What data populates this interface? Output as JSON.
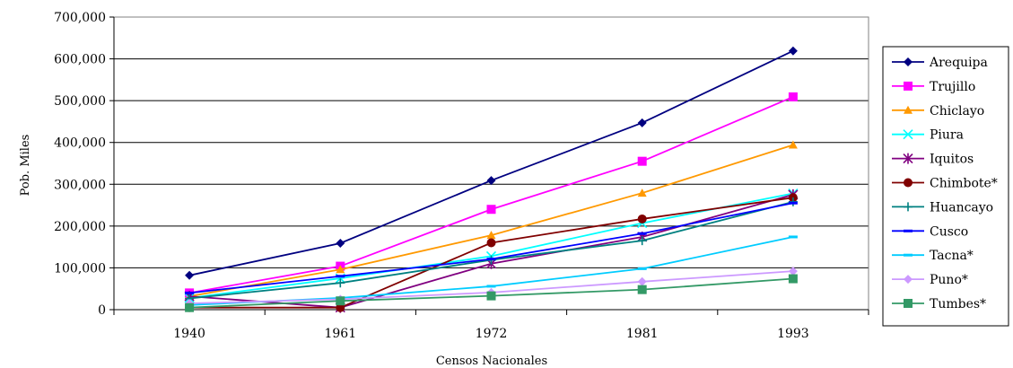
{
  "chart_data": {
    "type": "line",
    "title": "",
    "xlabel": "Censos Nacionales",
    "ylabel": "Pob. Miles",
    "categories": [
      "1940",
      "1961",
      "1972",
      "1981",
      "1993"
    ],
    "ylim": [
      0,
      700000
    ],
    "yticks": [
      "0",
      "100,000",
      "200,000",
      "300,000",
      "400,000",
      "500,000",
      "600,000",
      "700,000"
    ],
    "grid": "horizontal",
    "legend_position": "right",
    "series": [
      {
        "name": "Arequipa",
        "color": "#000080",
        "marker": "diamond",
        "values": [
          82000,
          159000,
          309000,
          447000,
          619000
        ]
      },
      {
        "name": "Trujillo",
        "color": "#ff00ff",
        "marker": "square",
        "values": [
          40000,
          104000,
          240000,
          355000,
          509000
        ]
      },
      {
        "name": "Chiclayo",
        "color": "#ff9900",
        "marker": "triangle",
        "values": [
          32000,
          96000,
          178000,
          279000,
          394000
        ]
      },
      {
        "name": "Piura",
        "color": "#00ffff",
        "marker": "x",
        "values": [
          28000,
          75000,
          128000,
          207000,
          278000
        ]
      },
      {
        "name": "Iquitos",
        "color": "#800080",
        "marker": "star",
        "values": [
          32000,
          5000,
          110000,
          174000,
          275000
        ]
      },
      {
        "name": "Chimbote*",
        "color": "#800000",
        "marker": "circle",
        "values": [
          5000,
          5000,
          160000,
          217000,
          268000
        ]
      },
      {
        "name": "Huancayo",
        "color": "#008080",
        "marker": "plus",
        "values": [
          27000,
          64000,
          119000,
          165000,
          258000
        ]
      },
      {
        "name": "Cusco",
        "color": "#0000ff",
        "marker": "dash",
        "values": [
          40000,
          80000,
          121000,
          182000,
          255000
        ]
      },
      {
        "name": "Tacna*",
        "color": "#00ccff",
        "marker": "dash",
        "values": [
          11000,
          28000,
          56000,
          98000,
          174000
        ]
      },
      {
        "name": "Puno*",
        "color": "#cc99ff",
        "marker": "diamond",
        "values": [
          15000,
          25000,
          41000,
          67000,
          92000
        ]
      },
      {
        "name": "Tumbes*",
        "color": "#339966",
        "marker": "square",
        "values": [
          5000,
          21000,
          33000,
          48000,
          74000
        ]
      }
    ]
  }
}
